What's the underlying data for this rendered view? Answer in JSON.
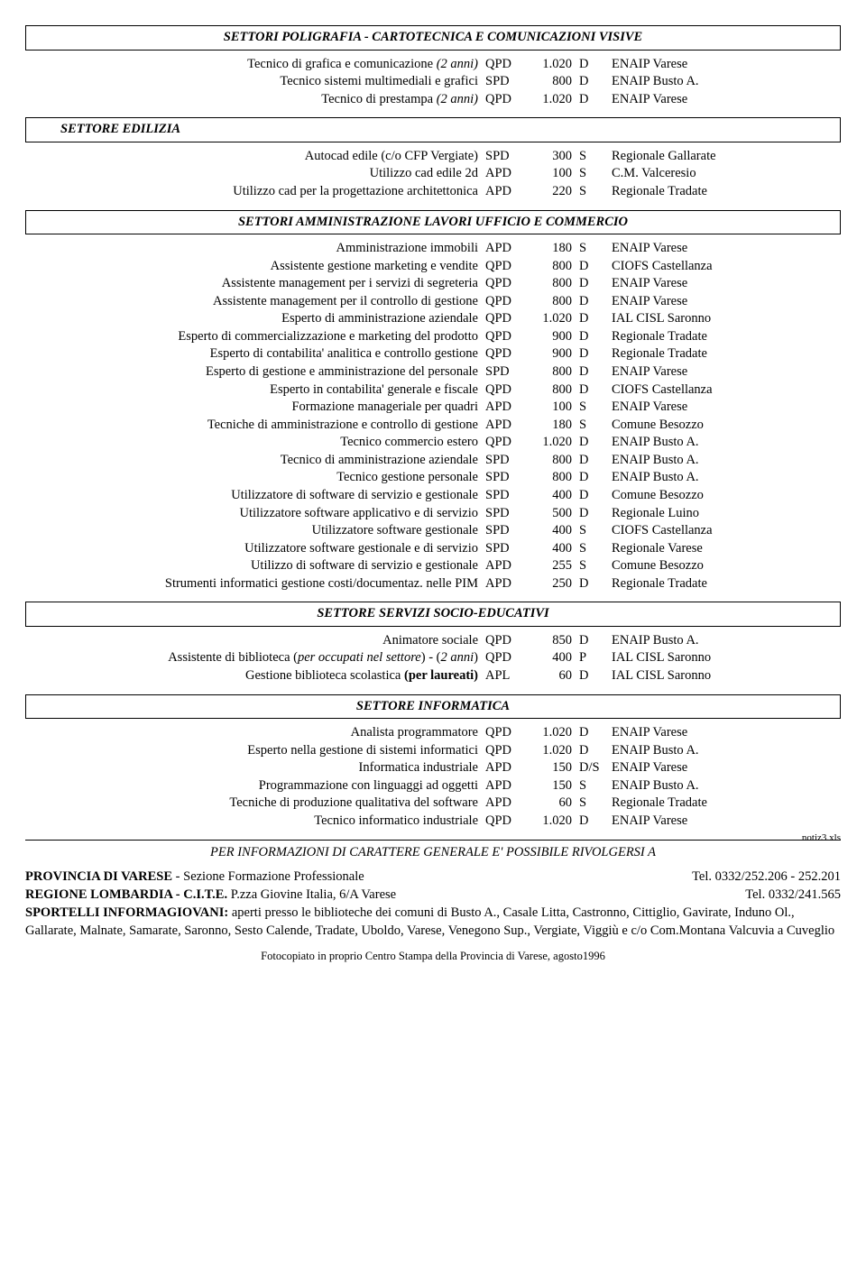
{
  "sections": [
    {
      "title": "SETTORI POLIGRAFIA - CARTOTECNICA E COMUNICAZIONI VISIVE",
      "align": "center",
      "rows": [
        {
          "title_plain": "Tecnico di grafica e comunicazione ",
          "title_italic": "(2 anni)",
          "code": "QPD",
          "hours": "1.020",
          "mode": "D",
          "org": "ENAIP Varese"
        },
        {
          "title_plain": "Tecnico sistemi multimediali e grafici",
          "code": "SPD",
          "hours": "800",
          "mode": "D",
          "org": "ENAIP Busto A."
        },
        {
          "title_plain": "Tecnico di prestampa ",
          "title_italic": "(2 anni)",
          "code": "QPD",
          "hours": "1.020",
          "mode": "D",
          "org": "ENAIP Varese"
        }
      ]
    },
    {
      "title": "SETTORE EDILIZIA",
      "align": "indent",
      "rows": [
        {
          "title_plain": "Autocad edile (c/o CFP Vergiate)",
          "code": "SPD",
          "hours": "300",
          "mode": "S",
          "org": "Regionale Gallarate"
        },
        {
          "title_plain": "Utilizzo cad edile 2d",
          "code": "APD",
          "hours": "100",
          "mode": "S",
          "org": "C.M. Valceresio"
        },
        {
          "title_plain": "Utilizzo cad per la progettazione architettonica",
          "code": "APD",
          "hours": "220",
          "mode": "S",
          "org": "Regionale Tradate"
        }
      ]
    },
    {
      "title": "SETTORI AMMINISTRAZIONE LAVORI UFFICIO E COMMERCIO",
      "align": "center",
      "rows": [
        {
          "title_plain": "Amministrazione immobili",
          "code": "APD",
          "hours": "180",
          "mode": "S",
          "org": "ENAIP Varese"
        },
        {
          "title_plain": "Assistente gestione marketing e vendite",
          "code": "QPD",
          "hours": "800",
          "mode": "D",
          "org": "CIOFS Castellanza"
        },
        {
          "title_plain": "Assistente management per i servizi di segreteria",
          "code": "QPD",
          "hours": "800",
          "mode": "D",
          "org": "ENAIP Varese"
        },
        {
          "title_plain": "Assistente management per il controllo di gestione",
          "code": "QPD",
          "hours": "800",
          "mode": "D",
          "org": "ENAIP Varese"
        },
        {
          "title_plain": "Esperto di amministrazione aziendale",
          "code": "QPD",
          "hours": "1.020",
          "mode": "D",
          "org": "IAL CISL Saronno"
        },
        {
          "title_plain": "Esperto di commercializzazione e marketing del prodotto",
          "code": "QPD",
          "hours": "900",
          "mode": "D",
          "org": "Regionale Tradate"
        },
        {
          "title_plain": "Esperto di contabilita' analitica e controllo gestione",
          "code": "QPD",
          "hours": "900",
          "mode": "D",
          "org": "Regionale Tradate"
        },
        {
          "title_plain": "Esperto di gestione e amministrazione del personale",
          "code": "SPD",
          "hours": "800",
          "mode": "D",
          "org": "ENAIP Varese"
        },
        {
          "title_plain": "Esperto in contabilita' generale e fiscale",
          "code": "QPD",
          "hours": "800",
          "mode": "D",
          "org": "CIOFS Castellanza"
        },
        {
          "title_plain": "Formazione manageriale per quadri",
          "code": "APD",
          "hours": "100",
          "mode": "S",
          "org": "ENAIP Varese"
        },
        {
          "title_plain": "Tecniche di amministrazione e controllo di gestione",
          "code": "APD",
          "hours": "180",
          "mode": "S",
          "org": "Comune Besozzo"
        },
        {
          "title_plain": "Tecnico commercio estero",
          "code": "QPD",
          "hours": "1.020",
          "mode": "D",
          "org": "ENAIP Busto A."
        },
        {
          "title_plain": "Tecnico di amministrazione aziendale",
          "code": "SPD",
          "hours": "800",
          "mode": "D",
          "org": "ENAIP Busto A."
        },
        {
          "title_plain": "Tecnico gestione personale",
          "code": "SPD",
          "hours": "800",
          "mode": "D",
          "org": "ENAIP Busto A."
        },
        {
          "title_plain": "Utilizzatore di software di servizio e gestionale",
          "code": "SPD",
          "hours": "400",
          "mode": "D",
          "org": "Comune Besozzo"
        },
        {
          "title_plain": "Utilizzatore software applicativo e di servizio",
          "code": "SPD",
          "hours": "500",
          "mode": "D",
          "org": "Regionale Luino"
        },
        {
          "title_plain": "Utilizzatore software gestionale",
          "code": "SPD",
          "hours": "400",
          "mode": "S",
          "org": "CIOFS Castellanza"
        },
        {
          "title_plain": "Utilizzatore software gestionale e di servizio",
          "code": "SPD",
          "hours": "400",
          "mode": "S",
          "org": "Regionale Varese"
        },
        {
          "title_plain": "Utilizzo di software di servizio e gestionale",
          "code": "APD",
          "hours": "255",
          "mode": "S",
          "org": "Comune Besozzo"
        },
        {
          "title_plain": "Strumenti informatici gestione costi/documentaz. nelle PIM",
          "code": "APD",
          "hours": "250",
          "mode": "D",
          "org": "Regionale Tradate"
        }
      ]
    },
    {
      "title": "SETTORE SERVIZI SOCIO-EDUCATIVI",
      "align": "center",
      "rows": [
        {
          "title_plain": "Animatore sociale",
          "code": "QPD",
          "hours": "850",
          "mode": "D",
          "org": "ENAIP Busto A."
        },
        {
          "title_plain": "Assistente di biblioteca (",
          "title_italic": "per occupati nel settore",
          "title_after": ") - (",
          "title_italic2": "2 anni",
          "title_after2": ")",
          "code": "QPD",
          "hours": "400",
          "mode": "P",
          "org": "IAL CISL Saronno"
        },
        {
          "title_plain": "Gestione biblioteca scolastica ",
          "title_bold": "(per laureati)",
          "code": "APL",
          "hours": "60",
          "mode": "D",
          "org": "IAL CISL Saronno"
        }
      ]
    },
    {
      "title": "SETTORE INFORMATICA",
      "align": "center",
      "rows": [
        {
          "title_plain": "Analista programmatore",
          "code": "QPD",
          "hours": "1.020",
          "mode": "D",
          "org": "ENAIP Varese"
        },
        {
          "title_plain": "Esperto nella gestione di sistemi informatici",
          "code": "QPD",
          "hours": "1.020",
          "mode": "D",
          "org": "ENAIP Busto A."
        },
        {
          "title_plain": "Informatica industriale",
          "code": "APD",
          "hours": "150",
          "mode": "D/S",
          "org": "ENAIP Varese"
        },
        {
          "title_plain": "Programmazione con linguaggi ad oggetti",
          "code": "APD",
          "hours": "150",
          "mode": "S",
          "org": "ENAIP Busto A."
        },
        {
          "title_plain": "Tecniche di produzione qualitativa del software",
          "code": "APD",
          "hours": "60",
          "mode": "S",
          "org": "Regionale Tradate"
        },
        {
          "title_plain": "Tecnico informatico industriale",
          "code": "QPD",
          "hours": "1.020",
          "mode": "D",
          "org": "ENAIP Varese"
        }
      ]
    }
  ],
  "footer": {
    "notiz": "notiz3.xls",
    "info_line": "PER INFORMAZIONI DI CARATTERE GENERALE E' POSSIBILE RIVOLGERSI A",
    "provincia_prefix": "PROVINCIA DI VARESE",
    "provincia_suffix": " - Sezione Formazione Professionale",
    "provincia_tel": "Tel. 0332/252.206 - 252.201",
    "regione_prefix": "REGIONE LOMBARDIA - C.I.T.E.",
    "regione_suffix": "    P.zza Giovine Italia, 6/A  Varese",
    "regione_tel": "Tel. 0332/241.565",
    "sportelli_prefix": "SPORTELLI INFORMAGIOVANI:",
    "sportelli_body": " aperti presso le biblioteche dei comuni di Busto A., Casale Litta, Castronno, Cittiglio, Gavirate, Induno Ol., Gallarate, Malnate, Samarate, Saronno, Sesto Calende, Tradate, Uboldo, Varese, Venegono Sup., Vergiate, Viggiù e c/o Com.Montana Valcuvia a Cuveglio",
    "colophon": "Fotocopiato in proprio Centro Stampa della Provincia di Varese, agosto1996"
  }
}
